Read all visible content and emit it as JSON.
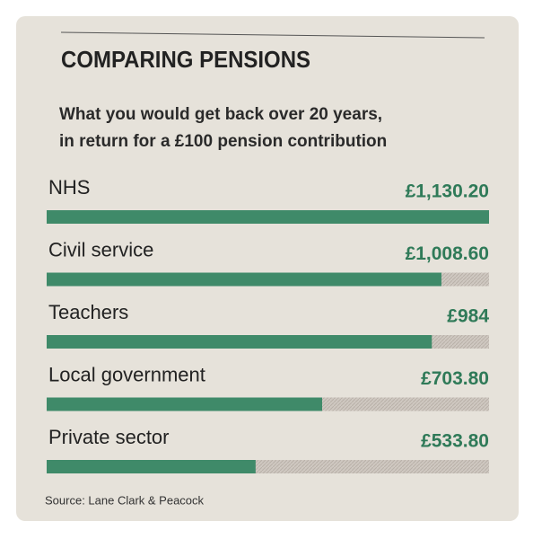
{
  "chart_data": {
    "type": "bar",
    "orientation": "horizontal",
    "title": "COMPARING PENSIONS",
    "subtitle": [
      "What you would get back over 20 years,",
      "in return for a £100 pension contribution"
    ],
    "categories": [
      "NHS",
      "Civil service",
      "Teachers",
      "Local government",
      "Private sector"
    ],
    "values": [
      1130.2,
      1008.6,
      984,
      703.8,
      533.8
    ],
    "value_labels": [
      "£1,130.20",
      "£1,008.60",
      "£984",
      "£703.80",
      "£533.80"
    ],
    "color": "#3f8a69",
    "xlim": [
      0,
      1130.2
    ],
    "source": "Source: Lane Clark & Peacock"
  }
}
